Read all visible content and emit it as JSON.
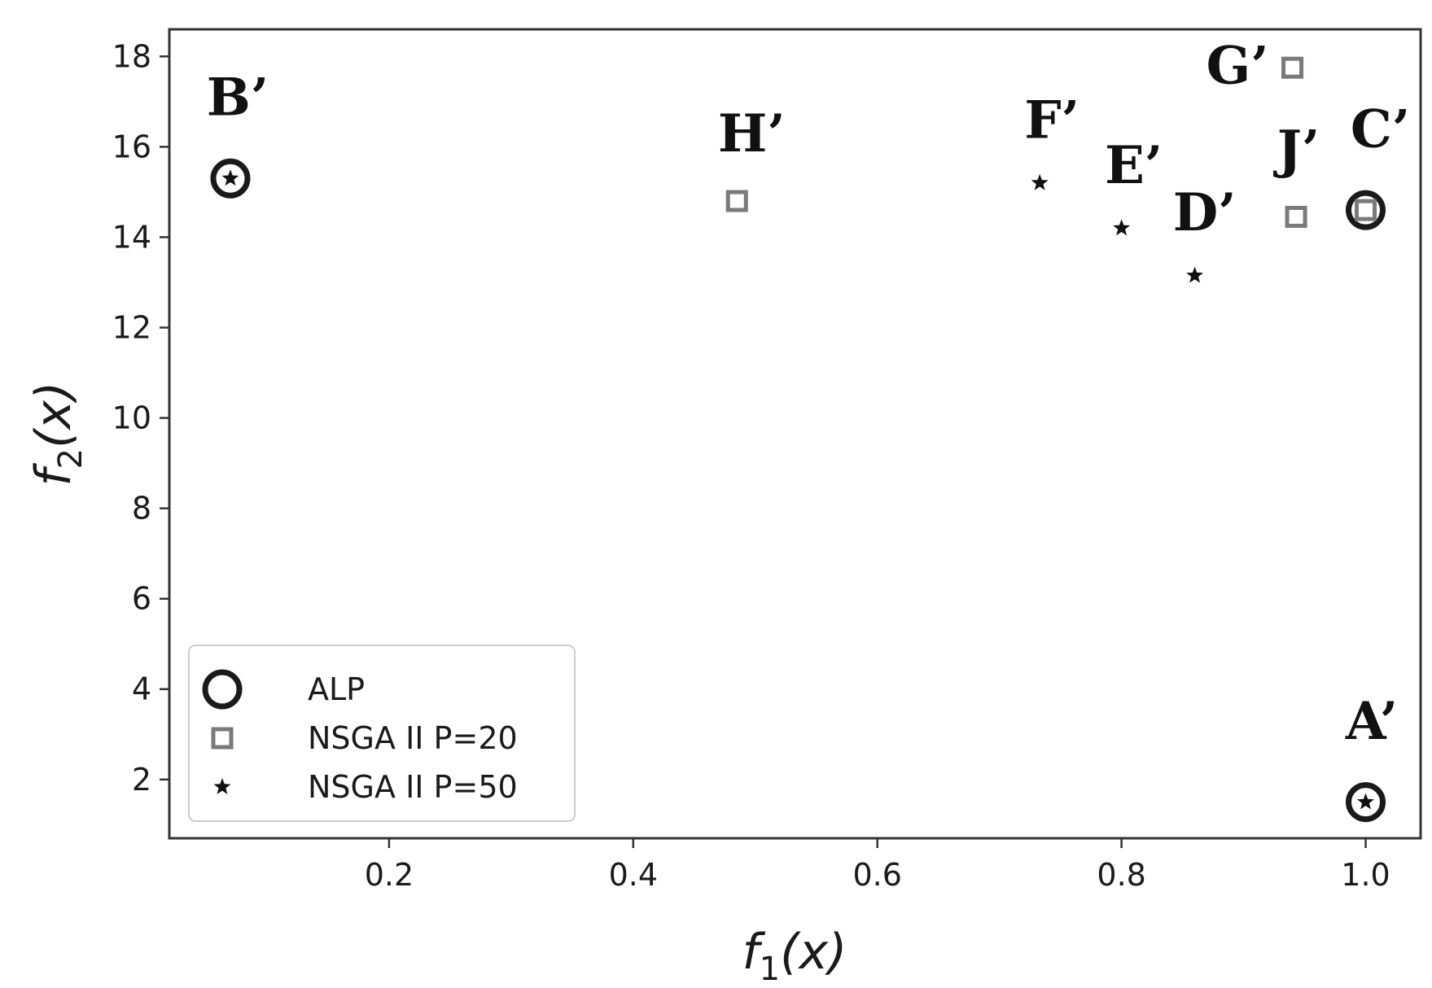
{
  "chart_data": {
    "type": "scatter",
    "title": "",
    "xlabel": "f1(x)",
    "ylabel": "f2(x)",
    "xlim": [
      0.02,
      1.045
    ],
    "ylim": [
      0.7,
      18.6
    ],
    "xticks": [
      0.2,
      0.4,
      0.6,
      0.8,
      1.0
    ],
    "xtick_labels": [
      "0.2",
      "0.4",
      "0.6",
      "0.8",
      "1.0"
    ],
    "yticks": [
      2,
      4,
      6,
      8,
      10,
      12,
      14,
      16,
      18
    ],
    "ytick_labels": [
      "2",
      "4",
      "6",
      "8",
      "10",
      "12",
      "14",
      "16",
      "18"
    ],
    "grid": false,
    "legend_position": "lower-left",
    "series": [
      {
        "name": "ALP",
        "marker": "circle",
        "color": "#1a1a1a",
        "points": [
          {
            "x": 0.07,
            "y": 15.3
          },
          {
            "x": 1.0,
            "y": 14.6
          },
          {
            "x": 1.0,
            "y": 1.5
          }
        ]
      },
      {
        "name": "NSGA II P=20",
        "marker": "square",
        "color": "#7a7a7a",
        "points": [
          {
            "x": 0.485,
            "y": 14.8
          },
          {
            "x": 0.94,
            "y": 17.75
          },
          {
            "x": 0.943,
            "y": 14.45
          },
          {
            "x": 1.0,
            "y": 14.6
          }
        ]
      },
      {
        "name": "NSGA II P=50",
        "marker": "star",
        "color": "#111111",
        "points": [
          {
            "x": 0.07,
            "y": 15.3
          },
          {
            "x": 0.733,
            "y": 15.2
          },
          {
            "x": 0.8,
            "y": 14.2
          },
          {
            "x": 0.86,
            "y": 13.15
          },
          {
            "x": 1.0,
            "y": 1.5
          }
        ]
      }
    ],
    "annotations": [
      {
        "text": "A’",
        "x": 1.0,
        "y": 1.5,
        "dx": 0.005,
        "dy": 1.4
      },
      {
        "text": "B’",
        "x": 0.07,
        "y": 15.3,
        "dx": 0.006,
        "dy": 1.4
      },
      {
        "text": "C’",
        "x": 1.0,
        "y": 14.6,
        "dx": 0.012,
        "dy": 1.4
      },
      {
        "text": "D’",
        "x": 0.86,
        "y": 13.15,
        "dx": 0.008,
        "dy": 1.0
      },
      {
        "text": "E’",
        "x": 0.8,
        "y": 14.2,
        "dx": 0.01,
        "dy": 1.0
      },
      {
        "text": "F’",
        "x": 0.733,
        "y": 15.2,
        "dx": 0.01,
        "dy": 1.0
      },
      {
        "text": "G’",
        "x": 0.94,
        "y": 17.75,
        "dx": -0.045,
        "dy": -0.35
      },
      {
        "text": "H’",
        "x": 0.485,
        "y": 14.8,
        "dx": 0.012,
        "dy": 1.1
      },
      {
        "text": "J’",
        "x": 0.943,
        "y": 14.45,
        "dx": 0.002,
        "dy": 1.1
      }
    ]
  }
}
